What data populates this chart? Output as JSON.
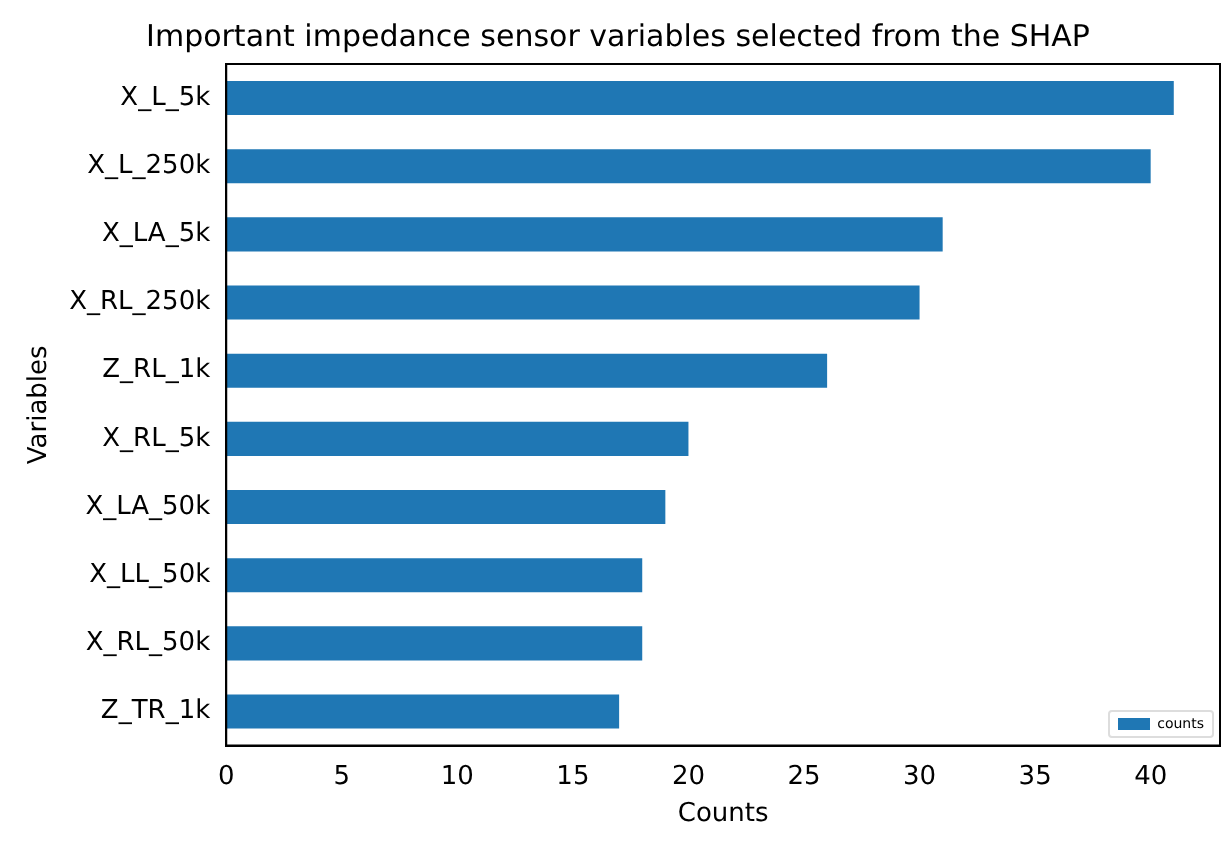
{
  "chart_data": {
    "type": "bar",
    "orientation": "horizontal",
    "title": "Important impedance sensor variables selected from the SHAP",
    "xlabel": "Counts",
    "ylabel": "Variables",
    "categories": [
      "X_L_5k",
      "X_L_250k",
      "X_LA_5k",
      "X_RL_250k",
      "Z_RL_1k",
      "X_RL_5k",
      "X_LA_50k",
      "X_LL_50k",
      "X_RL_50k",
      "Z_TR_1k"
    ],
    "series": [
      {
        "name": "counts",
        "color": "#1f77b4",
        "values": [
          41,
          40,
          31,
          30,
          26,
          20,
          19,
          18,
          18,
          17
        ]
      }
    ],
    "xlim": [
      0,
      43
    ],
    "xticks": [
      0,
      5,
      10,
      15,
      20,
      25,
      30,
      35,
      40
    ],
    "grid": false,
    "legend": "bottom right"
  }
}
